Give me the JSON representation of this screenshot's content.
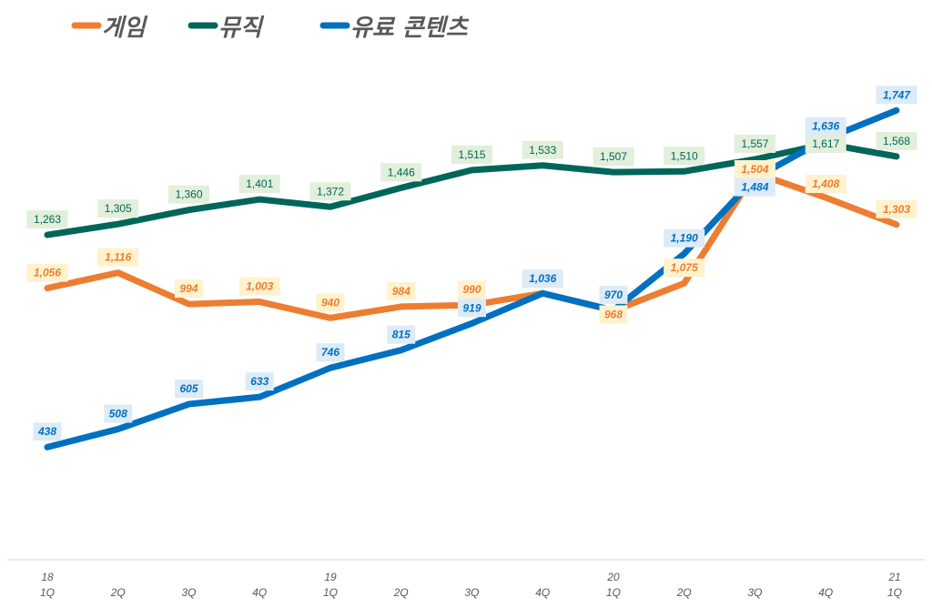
{
  "chart_data": {
    "type": "line",
    "title": "",
    "xlabel": "",
    "ylabel": "",
    "ylim": [
      0,
      1800
    ],
    "grid": false,
    "legend_position": "top",
    "categories": [
      [
        "18",
        "1Q"
      ],
      [
        "",
        "2Q"
      ],
      [
        "",
        "3Q"
      ],
      [
        "",
        "4Q"
      ],
      [
        "19",
        "1Q"
      ],
      [
        "",
        "2Q"
      ],
      [
        "",
        "3Q"
      ],
      [
        "",
        "4Q"
      ],
      [
        "20",
        "1Q"
      ],
      [
        "",
        "2Q"
      ],
      [
        "",
        "3Q"
      ],
      [
        "",
        "4Q"
      ],
      [
        "21",
        "1Q"
      ]
    ],
    "series": [
      {
        "name": "게임",
        "color": "#ED7D31",
        "label_bg": "#FFF2CC",
        "label_italic": true,
        "values": [
          1056,
          1116,
          994,
          1003,
          940,
          984,
          990,
          1036,
          968,
          1075,
          1504,
          1408,
          1303
        ],
        "labels": [
          "1,056",
          "1,116",
          "994",
          "1,003",
          "940",
          "984",
          "990",
          "1,036",
          "968",
          "1,075",
          "1,504",
          "1,408",
          "1,303"
        ]
      },
      {
        "name": "뮤직",
        "color": "#00665A",
        "label_bg": "#E2EFDA",
        "label_italic": false,
        "values": [
          1263,
          1305,
          1360,
          1401,
          1372,
          1446,
          1515,
          1533,
          1507,
          1510,
          1557,
          1617,
          1568
        ],
        "labels": [
          "1,263",
          "1,305",
          "1,360",
          "1,401",
          "1,372",
          "1,446",
          "1,515",
          "1,533",
          "1,507",
          "1,510",
          "1,557",
          "1,617",
          "1,568"
        ]
      },
      {
        "name": "유료 콘텐츠",
        "color": "#0070C0",
        "label_bg": "#DDEBF7",
        "label_italic": true,
        "values": [
          438,
          508,
          605,
          633,
          746,
          815,
          919,
          1036,
          970,
          1190,
          1484,
          1636,
          1747
        ],
        "labels": [
          "438",
          "508",
          "605",
          "633",
          "746",
          "815",
          "919",
          "1,036",
          "970",
          "1,190",
          "1,484",
          "1,636",
          "1,747"
        ]
      }
    ]
  }
}
